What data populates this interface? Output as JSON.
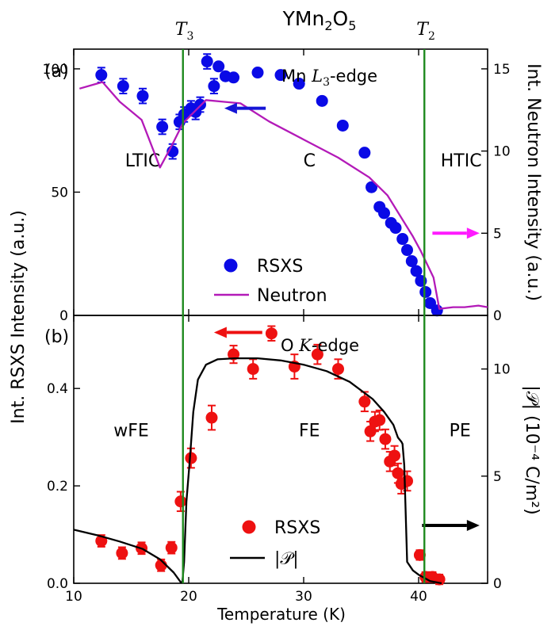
{
  "title": "YMn",
  "title_sub": "2",
  "title_mid": "O",
  "title_sub2": "5",
  "chart_data": [
    {
      "id": "a",
      "type": "scatter+line",
      "panel_label": "(a)",
      "edge_label_pre": "Mn ",
      "edge_label_math": "L",
      "edge_label_sub": "3",
      "edge_label_post": "-edge",
      "xlim": [
        10,
        46
      ],
      "ylim": [
        0,
        108
      ],
      "y2lim": [
        0,
        16.2
      ],
      "yticks": [
        0,
        50,
        100
      ],
      "y2ticks": [
        0,
        5,
        10,
        15
      ],
      "y2label": "Int. Neutron Intensity (a.u.)",
      "phase_labels": [
        "LTIC",
        "C",
        "HTIC"
      ],
      "phase_x": [
        16,
        30.5,
        43.7
      ],
      "phase_y": 63,
      "legend": [
        "RSXS",
        "Neutron"
      ],
      "colors": {
        "rsxs": "#0a0ae6",
        "neutron": "#b31ab8",
        "arrow_left": "#1515d6",
        "arrow_right": "#ff1aff"
      },
      "arrows": [
        {
          "from": [
            26.7,
            84
          ],
          "to": [
            23.1,
            84
          ],
          "color": "#1515d6"
        },
        {
          "from": [
            41.2,
            5.0
          ],
          "to": [
            45.3,
            5.0
          ],
          "color": "#ff1aff",
          "axis": "y2"
        }
      ],
      "series": [
        {
          "name": "RSXS",
          "axis": "y",
          "x": [
            12.4,
            14.3,
            16,
            17.7,
            18.6,
            19.2,
            19.6,
            20.2,
            20.6,
            21,
            21.6,
            22.2,
            22.6,
            23.2,
            23.9,
            26,
            28,
            29.6,
            31.6,
            33.4,
            35.3,
            35.9,
            36.6,
            37,
            37.6,
            38,
            38.6,
            39,
            39.4,
            39.8,
            40.2,
            40.6,
            41,
            41.6
          ],
          "y": [
            97.5,
            93,
            89,
            76.5,
            66.5,
            78.5,
            81.5,
            84,
            82.5,
            85.5,
            103,
            93,
            101,
            97,
            96.5,
            98.5,
            97.5,
            94,
            87,
            77,
            66,
            52,
            44,
            41.5,
            37.5,
            35.5,
            31,
            26.5,
            22,
            18,
            14,
            9.5,
            5,
            2
          ],
          "yerr": [
            3,
            3,
            3,
            3,
            3,
            3,
            3,
            3,
            3,
            3,
            3,
            3,
            0,
            0,
            0,
            0,
            0,
            0,
            0,
            0,
            0,
            0,
            0,
            0,
            0,
            0,
            0,
            0,
            0,
            0,
            0,
            0,
            0,
            0
          ]
        },
        {
          "name": "Neutron",
          "axis": "y2",
          "x": [
            10.5,
            12.5,
            14,
            15.9,
            17.5,
            18.5,
            19.5,
            21.5,
            23,
            24.5,
            27,
            30,
            33,
            35.7,
            37.3,
            39.5,
            40.2,
            41.3,
            41.8,
            43,
            44,
            45.2,
            46
          ],
          "y": [
            13.8,
            14.2,
            13,
            11.9,
            9.0,
            10.3,
            11.7,
            13.1,
            13.0,
            12.9,
            11.8,
            10.7,
            9.6,
            8.4,
            7.3,
            4.8,
            3.9,
            2.3,
            0.4,
            0.5,
            0.5,
            0.6,
            0.5
          ]
        }
      ]
    },
    {
      "id": "b",
      "type": "scatter+line",
      "panel_label": "(b)",
      "edge_label_pre": "O ",
      "edge_label_math": "K",
      "edge_label_post": "-edge",
      "xlabel": "Temperature (K)",
      "xlim": [
        10,
        46
      ],
      "xticks": [
        10,
        20,
        30,
        40
      ],
      "ylim": [
        0,
        0.55
      ],
      "y2lim": [
        0,
        12.5
      ],
      "yticks": [
        0.0,
        0.2,
        0.4
      ],
      "y2ticks": [
        0,
        5,
        10
      ],
      "y2label": "|𝒫| (10⁻⁴ C/m²)",
      "phase_labels": [
        "wFE",
        "FE",
        "PE"
      ],
      "phase_x": [
        15,
        30.5,
        43.6
      ],
      "phase_y": 0.315,
      "legend": [
        "RSXS",
        "|𝒫|"
      ],
      "colors": {
        "rsxs": "#ee1111",
        "polarization": "#000000",
        "arrow_left": "#ee1111",
        "arrow_right": "#000000"
      },
      "arrows": [
        {
          "from": [
            26.4,
            0.515
          ],
          "to": [
            22.2,
            0.515
          ],
          "color": "#ee1111"
        },
        {
          "from": [
            40.3,
            2.7
          ],
          "to": [
            45.3,
            2.7
          ],
          "color": "#000000",
          "axis": "y2"
        }
      ],
      "series": [
        {
          "name": "RSXS",
          "axis": "y",
          "x": [
            12.4,
            14.2,
            15.9,
            17.6,
            18.5,
            19.3,
            20.2,
            22,
            23.9,
            25.6,
            27.2,
            29.2,
            31.2,
            33,
            35.3,
            35.8,
            36.2,
            36.6,
            37.1,
            37.5,
            37.9,
            38.2,
            38.5,
            39,
            40.1,
            40.6,
            41.2,
            41.8
          ],
          "y": [
            0.087,
            0.062,
            0.072,
            0.037,
            0.073,
            0.168,
            0.257,
            0.34,
            0.47,
            0.44,
            0.513,
            0.445,
            0.47,
            0.44,
            0.373,
            0.312,
            0.332,
            0.335,
            0.296,
            0.25,
            0.262,
            0.226,
            0.204,
            0.21,
            0.058,
            0.013,
            0.013,
            0.008
          ],
          "yerr": [
            0.012,
            0.012,
            0.012,
            0.012,
            0.012,
            0.02,
            0.02,
            0.025,
            0.018,
            0.02,
            0.015,
            0.025,
            0.02,
            0.02,
            0.02,
            0.02,
            0.02,
            0.02,
            0.02,
            0.02,
            0.02,
            0.02,
            0.02,
            0.02,
            0.01,
            0.01,
            0.01,
            0.01
          ]
        },
        {
          "name": "|𝒫|",
          "axis": "y2",
          "x": [
            10,
            12,
            14,
            16,
            17.5,
            18.7,
            19.3,
            19.45,
            19.6,
            19.8,
            20.1,
            20.4,
            20.8,
            21.5,
            22.5,
            24,
            26,
            28,
            30,
            32,
            34,
            36,
            37,
            37.8,
            38.2,
            38.5,
            38.6,
            38.75,
            39,
            39.5,
            40,
            40.5,
            41,
            42
          ],
          "y": [
            2.5,
            2.25,
            1.95,
            1.6,
            1.12,
            0.5,
            0.05,
            0.05,
            1.0,
            3.8,
            5.8,
            8.0,
            9.5,
            10.2,
            10.45,
            10.5,
            10.5,
            10.4,
            10.2,
            9.9,
            9.4,
            8.6,
            8.0,
            7.4,
            6.8,
            6.6,
            6.5,
            5.5,
            1.0,
            0.6,
            0.4,
            0.25,
            0.1,
            0.0
          ]
        }
      ]
    }
  ],
  "vlines": {
    "x": [
      19.5,
      40.5
    ],
    "color": "#1f8a1f",
    "labels_math": [
      "T",
      "T"
    ],
    "labels_sub": [
      "3",
      "2"
    ]
  },
  "shared_ylabel": "Int. RSXS Intensity (a.u.)"
}
